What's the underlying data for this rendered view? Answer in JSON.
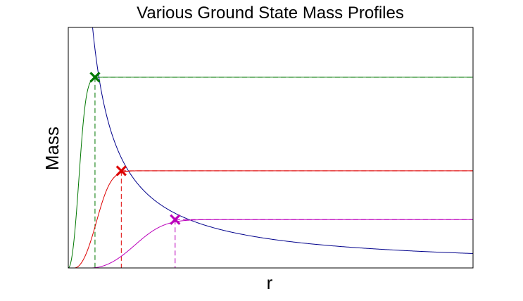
{
  "chart_data": {
    "type": "line",
    "title": "Various Ground State Mass Profiles",
    "xlabel": "r",
    "ylabel": "Mass",
    "xlim": [
      0,
      10
    ],
    "ylim": [
      0,
      1
    ],
    "ticks_shown": false,
    "grid": false,
    "legend": "none",
    "reference_curve": {
      "form": "M = 0.6 / r",
      "color": "#00008b"
    },
    "profiles": [
      {
        "color": "#007700",
        "rise_start": 0.0,
        "rise_scale": 0.35,
        "plateau_mass": 0.793,
        "marker_r": 0.66,
        "marker_mass": 0.793
      },
      {
        "color": "#dd0000",
        "rise_start": 0.15,
        "rise_scale": 0.72,
        "plateau_mass": 0.404,
        "marker_r": 1.31,
        "marker_mass": 0.404
      },
      {
        "color": "#bb00bb",
        "rise_start": 0.55,
        "rise_scale": 1.45,
        "plateau_mass": 0.201,
        "marker_r": 2.64,
        "marker_mass": 0.201
      }
    ]
  }
}
